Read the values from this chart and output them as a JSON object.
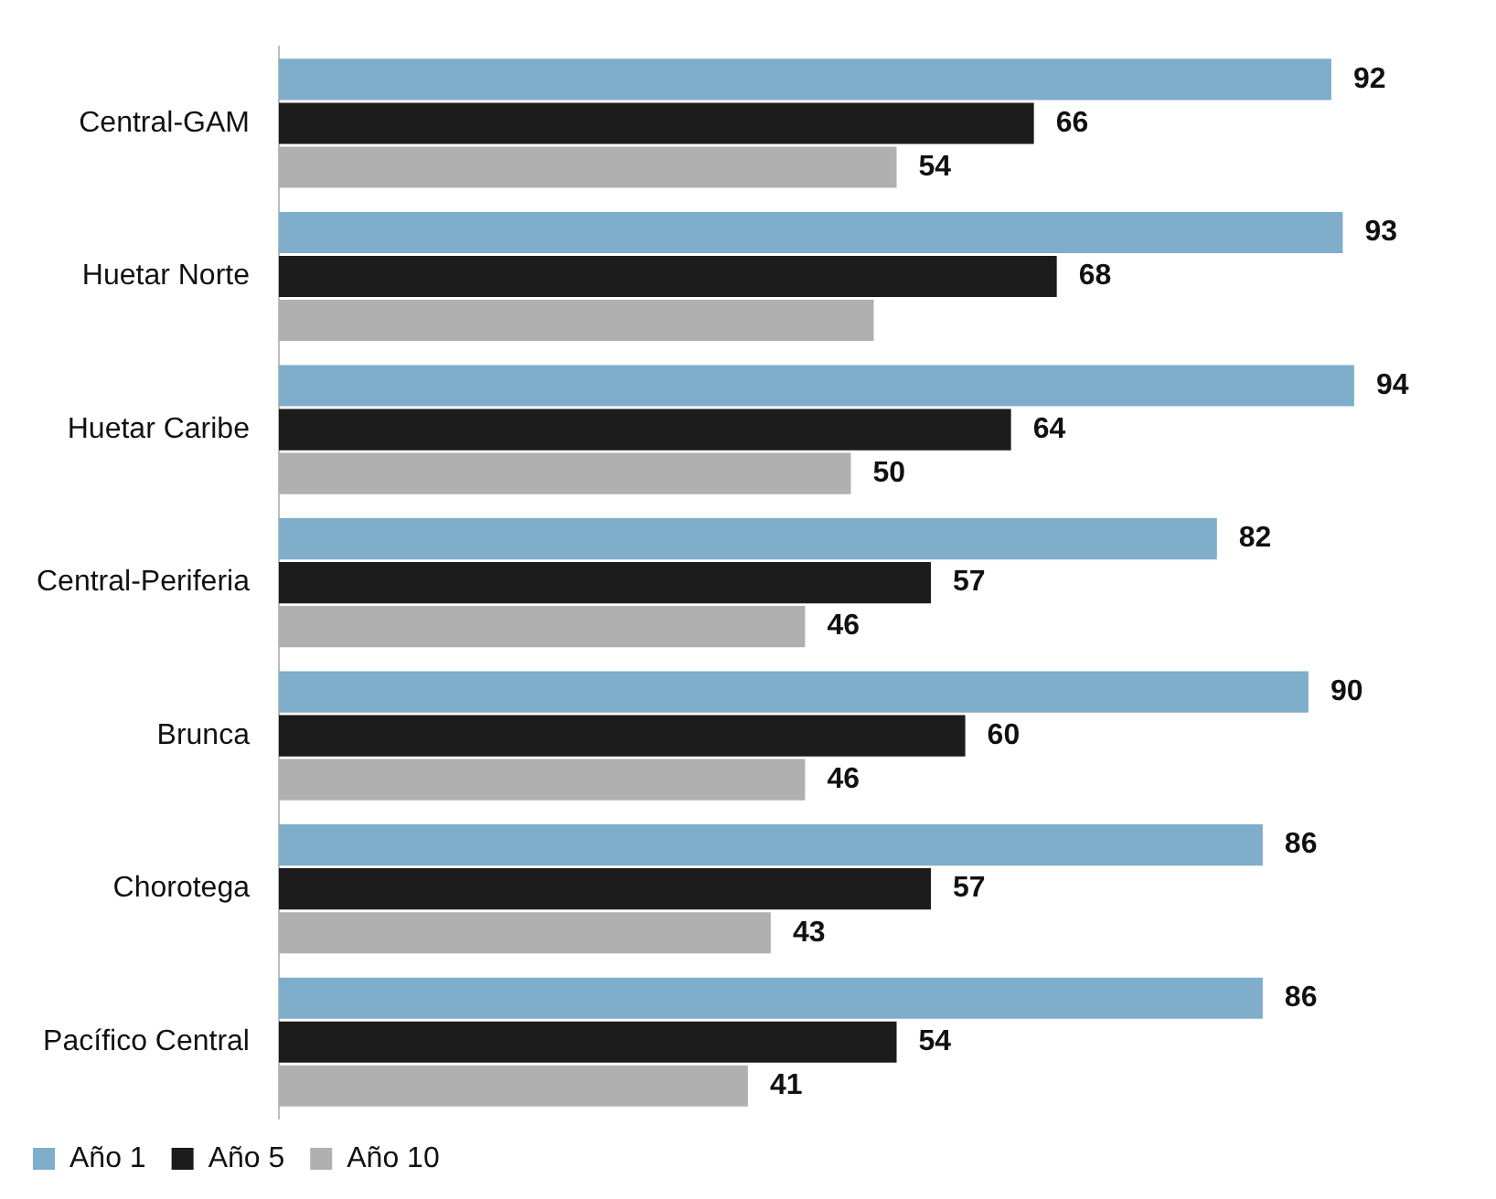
{
  "chart_data": {
    "type": "bar",
    "orientation": "horizontal",
    "categories": [
      "Central-GAM",
      "Huetar Norte",
      "Huetar Caribe",
      "Central-Periferia",
      "Brunca",
      "Chorotega",
      "Pacífico Central"
    ],
    "series": [
      {
        "name": "Año 1",
        "color": "#7eaeca",
        "values": [
          92,
          93,
          94,
          82,
          90,
          86,
          86
        ],
        "value_labels": [
          "92",
          "93",
          "94",
          "82",
          "90",
          "86",
          "86"
        ]
      },
      {
        "name": "Año 5",
        "color": "#1c1c1c",
        "values": [
          66,
          68,
          64,
          57,
          60,
          57,
          54
        ],
        "value_labels": [
          "66",
          "68",
          "64",
          "57",
          "60",
          "57",
          "54"
        ]
      },
      {
        "name": "Año 10",
        "color": "#b0b0b0",
        "values": [
          54,
          52,
          50,
          46,
          46,
          43,
          41
        ],
        "value_labels": [
          "54",
          null,
          "50",
          "46",
          "46",
          "43",
          "41"
        ]
      }
    ],
    "grid": false,
    "legend": "bottom left"
  }
}
